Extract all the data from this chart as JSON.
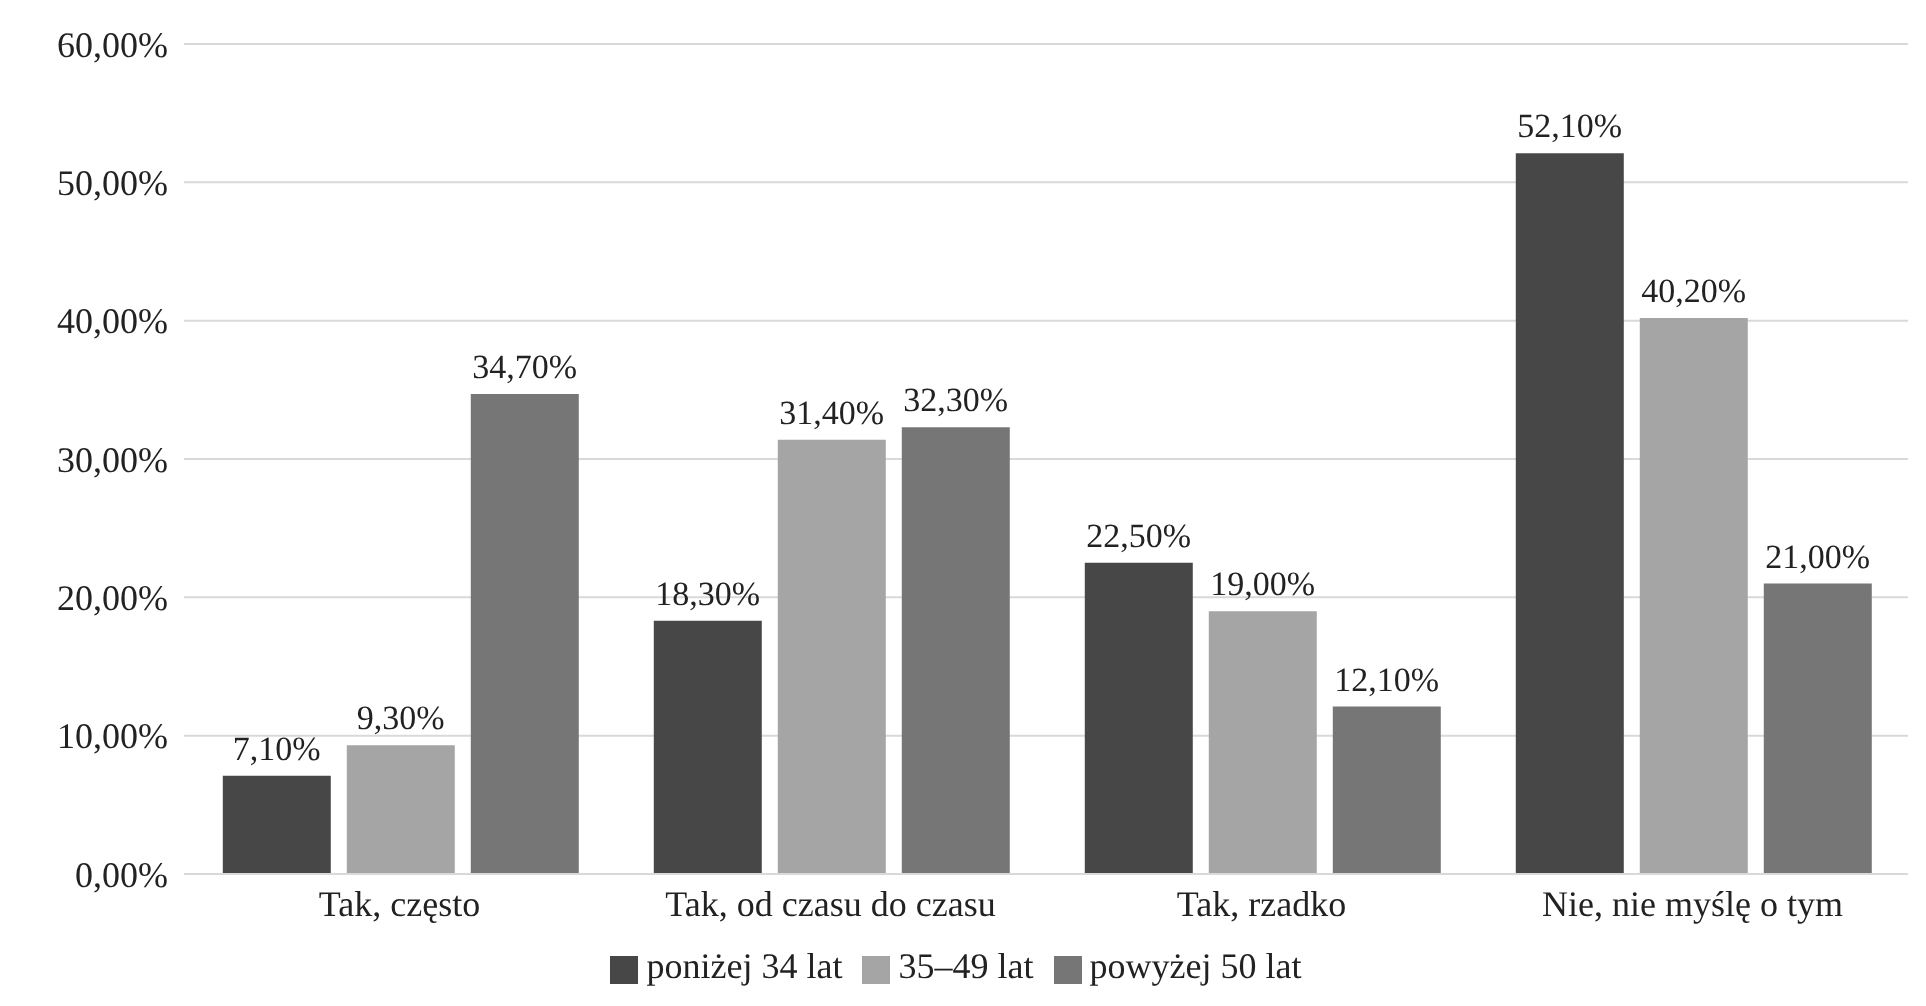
{
  "chart_data": {
    "type": "bar",
    "categories": [
      "Tak, często",
      "Tak, od czasu do czasu",
      "Tak, rzadko",
      "Nie, nie myślę o tym"
    ],
    "series": [
      {
        "name": "poniżej 34 lat",
        "color": "#474747",
        "values": [
          7.1,
          18.3,
          22.5,
          52.1
        ],
        "value_labels": [
          "7,10%",
          "18,30%",
          "22,50%",
          "52,10%"
        ]
      },
      {
        "name": "35–49 lat",
        "color": "#a5a5a5",
        "values": [
          9.3,
          31.4,
          19.0,
          40.2
        ],
        "value_labels": [
          "9,30%",
          "31,40%",
          "19,00%",
          "40,20%"
        ]
      },
      {
        "name": "powyżej 50 lat",
        "color": "#767676",
        "values": [
          34.7,
          32.3,
          12.1,
          21.0
        ],
        "value_labels": [
          "34,70%",
          "32,30%",
          "12,10%",
          "21,00%"
        ]
      }
    ],
    "ylim": [
      0,
      60
    ],
    "yticks": [
      {
        "value": 0,
        "label": "0,00%"
      },
      {
        "value": 10,
        "label": "10,00%"
      },
      {
        "value": 20,
        "label": "20,00%"
      },
      {
        "value": 30,
        "label": "30,00%"
      },
      {
        "value": 40,
        "label": "40,00%"
      },
      {
        "value": 50,
        "label": "50,00%"
      },
      {
        "value": 60,
        "label": "60,00%"
      }
    ],
    "grid": "y",
    "legend": "bottom"
  }
}
